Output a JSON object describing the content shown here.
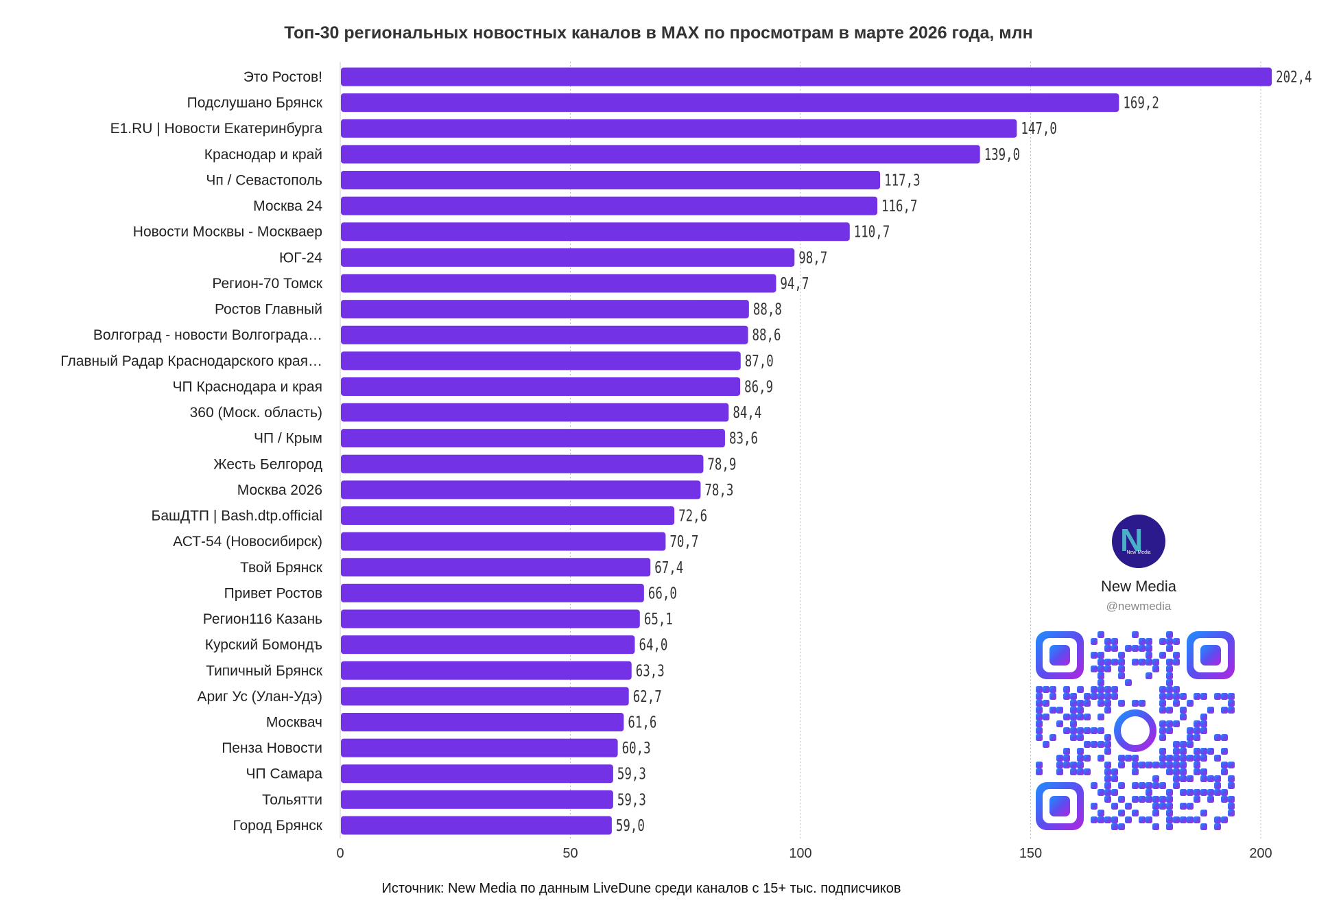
{
  "chart_data": {
    "type": "bar",
    "orientation": "horizontal",
    "title": "Топ-30 региональных новостных каналов в MAX по просмотрам в марте 2026 года, млн",
    "xlabel": "",
    "ylabel": "",
    "xlim": [
      0,
      200
    ],
    "xticks": [
      0,
      50,
      100,
      150,
      200
    ],
    "grid": true,
    "bar_color": "#7432e6",
    "categories": [
      "Это Ростов!",
      "Подслушано Брянск",
      "E1.RU | Новости Екатеринбурга",
      "Краснодар и край",
      "Чп / Севастополь",
      "Москва 24",
      "Новости Москвы - Москваер",
      "ЮГ-24",
      "Регион-70 Томск",
      "Ростов Главный",
      "Волгоград - новости Волгограда…",
      "Главный Радар Краснодарского края…",
      "ЧП Краснодара и края",
      "360 (Моск. область)",
      "ЧП / Крым",
      "Жесть Белгород",
      "Москва 2026",
      "БашДТП | Bash.dtp.official",
      "АСТ-54 (Новосибирск)",
      "Твой Брянск",
      "Привет Ростов",
      "Регион116 Казань",
      "Курский Бомондъ",
      "Типичный Брянск",
      "Ариг Ус (Улан-Удэ)",
      "Москвач",
      "Пенза Новости",
      "ЧП Самара",
      "Тольятти",
      "Город Брянск"
    ],
    "values": [
      202.4,
      169.2,
      147.0,
      139.0,
      117.3,
      116.7,
      110.7,
      98.7,
      94.7,
      88.8,
      88.6,
      87.0,
      86.9,
      84.4,
      83.6,
      78.9,
      78.3,
      72.6,
      70.7,
      67.4,
      66.0,
      65.1,
      64.0,
      63.3,
      62.7,
      61.6,
      60.3,
      59.3,
      59.3,
      59.0
    ],
    "value_labels": [
      "202,4",
      "169,2",
      "147,0",
      "139,0",
      "117,3",
      "116,7",
      "110,7",
      "98,7",
      "94,7",
      "88,8",
      "88,6",
      "87,0",
      "86,9",
      "84,4",
      "83,6",
      "78,9",
      "78,3",
      "72,6",
      "70,7",
      "67,4",
      "66,0",
      "65,1",
      "64,0",
      "63,3",
      "62,7",
      "61,6",
      "60,3",
      "59,3",
      "59,3",
      "59,0"
    ]
  },
  "source": "Источник: New Media по данным LiveDune среди каналов с 15+ тыс. подписчиков",
  "brand": {
    "name": "New Media",
    "handle": "@newmedia",
    "logo_text": "New Media",
    "logo_icon": "new-media-logo-icon",
    "qr_icon": "qr-code-icon"
  }
}
